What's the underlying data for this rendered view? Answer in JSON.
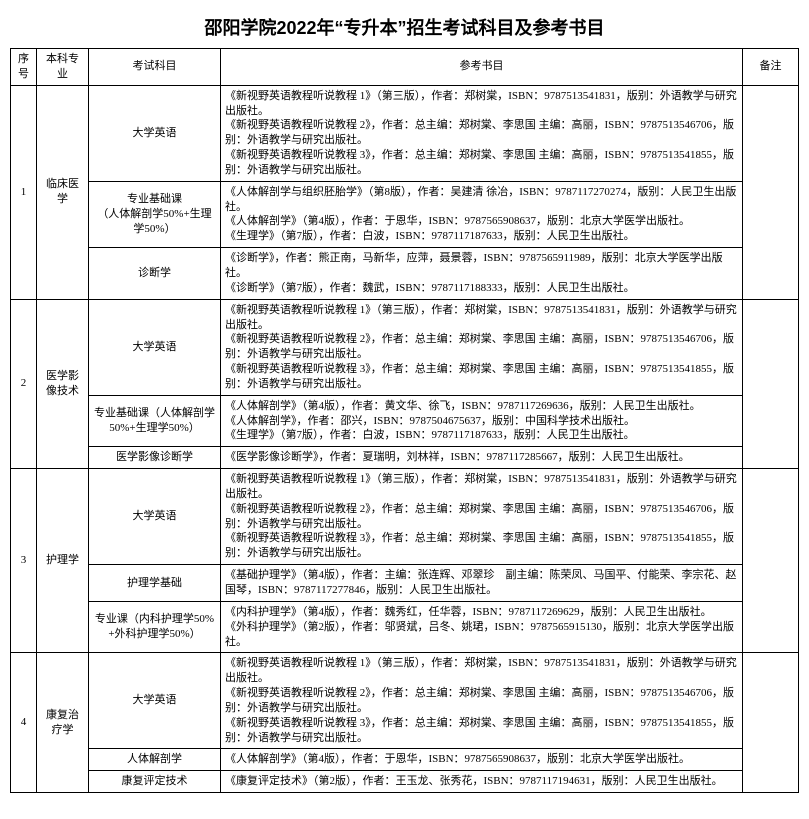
{
  "title": "邵阳学院2022年“专升本”招生考试科目及参考书目",
  "header": {
    "seq": "序号",
    "major": "本科专业",
    "subject": "考试科目",
    "ref": "参考书目",
    "note": "备注"
  },
  "english_ref": "《新视野英语教程听说教程 1》（第三版），作者：郑树棠，ISBN：9787513541831，版别：外语教学与研究出版社。\n《新视野英语教程听说教程 2》，作者：总主编：郑树棠、李思国 主编：高丽，ISBN：9787513546706，版别：外语教学与研究出版社。\n《新视野英语教程听说教程 3》，作者：总主编：郑树棠、李思国 主编：高丽，ISBN：9787513541855，版别：外语教学与研究出版社。",
  "rows": [
    {
      "seq": "1",
      "major": "临床医学",
      "subjects": [
        {
          "name": "大学英语",
          "ref_key": "english_ref"
        },
        {
          "name": "专业基础课\n（人体解剖学50%+生理学50%）",
          "ref": "《人体解剖学与组织胚胎学》（第8版），作者：吴建清 徐冶，ISBN：9787117270274，版别：人民卫生出版社。\n《人体解剖学》（第4版），作者：于恩华，ISBN：9787565908637，版别：北京大学医学出版社。\n《生理学》（第7版），作者：白波，ISBN：9787117187633，版别：人民卫生出版社。"
        },
        {
          "name": "诊断学",
          "ref": "《诊断学》，作者：熊正南，马新华，应萍，聂景蓉，ISBN：9787565911989，版别：北京大学医学出版社。\n《诊断学》（第7版），作者：魏武，ISBN：9787117188333，版别：人民卫生出版社。"
        }
      ],
      "note": ""
    },
    {
      "seq": "2",
      "major": "医学影像技术",
      "subjects": [
        {
          "name": "大学英语",
          "ref_key": "english_ref"
        },
        {
          "name": "专业基础课（人体解剖学50%+生理学50%）",
          "ref": "《人体解剖学》（第4版），作者：黄文华、徐飞，ISBN：9787117269636，版别：人民卫生出版社。\n《人体解剖学》，作者：邵兴，ISBN：9787504675637，版别：中国科学技术出版社。\n《生理学》（第7版），作者：白波，ISBN：9787117187633，版别：人民卫生出版社。"
        },
        {
          "name": "医学影像诊断学",
          "ref": "《医学影像诊断学》，作者：夏瑞明，刘林祥，ISBN：9787117285667，版别：人民卫生出版社。"
        }
      ],
      "note": ""
    },
    {
      "seq": "3",
      "major": "护理学",
      "subjects": [
        {
          "name": "大学英语",
          "ref_key": "english_ref"
        },
        {
          "name": "护理学基础",
          "ref": "《基础护理学》（第4版），作者：主编：张连辉、邓翠珍　副主编：陈荣凤、马国平、付能荣、李宗花、赵国琴，ISBN：9787117277846，版别：人民卫生出版社。"
        },
        {
          "name": "专业课（内科护理学50%+外科护理学50%）",
          "ref": "《内科护理学》（第4版），作者：魏秀红，任华蓉，ISBN：9787117269629，版别：人民卫生出版社。\n《外科护理学》（第2版），作者：邬贤斌，吕冬、姚珺，ISBN：9787565915130，版别：北京大学医学出版社。"
        }
      ],
      "note": ""
    },
    {
      "seq": "4",
      "major": "康复治疗学",
      "subjects": [
        {
          "name": "大学英语",
          "ref_key": "english_ref"
        },
        {
          "name": "人体解剖学",
          "ref": "《人体解剖学》（第4版），作者：于恩华，ISBN：9787565908637，版别：北京大学医学出版社。"
        },
        {
          "name": "康复评定技术",
          "ref": "《康复评定技术》（第2版），作者：王玉龙、张秀花，ISBN：9787117194631，版别：人民卫生出版社。"
        }
      ],
      "note": ""
    }
  ]
}
